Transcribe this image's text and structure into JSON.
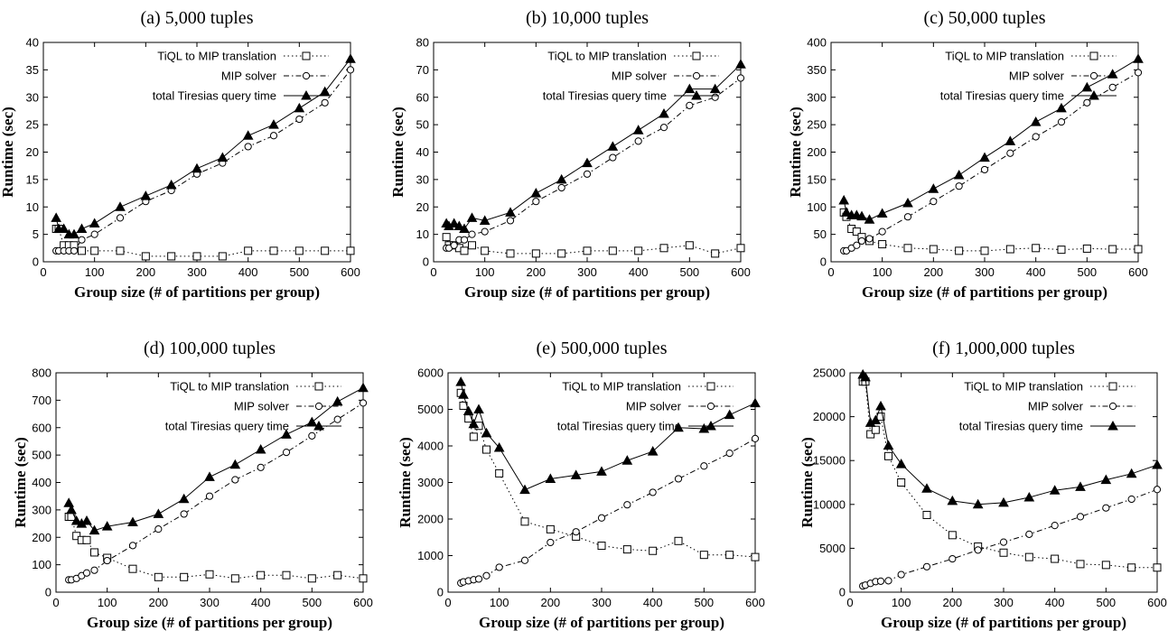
{
  "chart_data": [
    {
      "type": "line",
      "title": "(a) 5,000 tuples",
      "xlabel": "Group size (# of partitions per group)",
      "ylabel": "Runtime (sec)",
      "xlim": [
        0,
        600
      ],
      "ylim": [
        0,
        40
      ],
      "xticks": [
        0,
        100,
        200,
        300,
        400,
        500,
        600
      ],
      "yticks": [
        0,
        5,
        10,
        15,
        20,
        25,
        30,
        35,
        40
      ],
      "legend_position": "top-left",
      "series": [
        {
          "name": "TiQL to MIP translation",
          "marker": "square",
          "dash": "dotted",
          "x": [
            25,
            30,
            40,
            50,
            60,
            75,
            100,
            150,
            200,
            250,
            300,
            350,
            400,
            450,
            500,
            550,
            600
          ],
          "y": [
            6,
            6,
            3,
            3,
            3,
            2,
            2,
            2,
            1,
            1,
            1,
            1,
            2,
            2,
            2,
            2,
            2
          ]
        },
        {
          "name": "MIP solver",
          "marker": "circle",
          "dash": "dash-dot",
          "x": [
            25,
            30,
            40,
            50,
            60,
            75,
            100,
            150,
            200,
            250,
            300,
            350,
            400,
            450,
            500,
            550,
            600
          ],
          "y": [
            2,
            2,
            2,
            2,
            2,
            4,
            5,
            8,
            11,
            13,
            16,
            18,
            21,
            23,
            26,
            29,
            35
          ]
        },
        {
          "name": "total Tiresias query time",
          "marker": "triangle",
          "dash": "solid",
          "x": [
            25,
            30,
            40,
            50,
            60,
            75,
            100,
            150,
            200,
            250,
            300,
            350,
            400,
            450,
            500,
            550,
            600
          ],
          "y": [
            8,
            6,
            6,
            5,
            5,
            6,
            7,
            10,
            12,
            14,
            17,
            19,
            23,
            25,
            28,
            31,
            37
          ]
        }
      ]
    },
    {
      "type": "line",
      "title": "(b) 10,000 tuples",
      "xlabel": "Group size (# of partitions per group)",
      "ylabel": "Runtime (sec)",
      "xlim": [
        0,
        600
      ],
      "ylim": [
        0,
        80
      ],
      "xticks": [
        0,
        100,
        200,
        300,
        400,
        500,
        600
      ],
      "yticks": [
        0,
        10,
        20,
        30,
        40,
        50,
        60,
        70,
        80
      ],
      "legend_position": "top-left",
      "series": [
        {
          "name": "TiQL to MIP translation",
          "marker": "square",
          "dash": "dotted",
          "x": [
            25,
            30,
            40,
            50,
            60,
            75,
            100,
            150,
            200,
            250,
            300,
            350,
            400,
            450,
            500,
            550,
            600
          ],
          "y": [
            9,
            6,
            6,
            5,
            4,
            6,
            4,
            3,
            3,
            3,
            4,
            4,
            4,
            5,
            6,
            3,
            5
          ]
        },
        {
          "name": "MIP solver",
          "marker": "circle",
          "dash": "dash-dot",
          "x": [
            25,
            30,
            40,
            50,
            60,
            75,
            100,
            150,
            200,
            250,
            300,
            350,
            400,
            450,
            500,
            550,
            600
          ],
          "y": [
            5,
            5,
            6,
            8,
            8,
            10,
            11,
            15,
            22,
            27,
            32,
            38,
            44,
            49,
            57,
            60,
            67
          ]
        },
        {
          "name": "total Tiresias query time",
          "marker": "triangle",
          "dash": "solid",
          "x": [
            25,
            30,
            40,
            50,
            60,
            75,
            100,
            150,
            200,
            250,
            300,
            350,
            400,
            450,
            500,
            550,
            600
          ],
          "y": [
            14,
            13,
            14,
            13,
            12,
            16,
            15,
            18,
            25,
            30,
            36,
            42,
            48,
            54,
            63,
            63,
            72
          ]
        }
      ]
    },
    {
      "type": "line",
      "title": "(c) 50,000 tuples",
      "xlabel": "Group size (# of partitions per group)",
      "ylabel": "Runtime (sec)",
      "xlim": [
        0,
        600
      ],
      "ylim": [
        0,
        400
      ],
      "xticks": [
        0,
        100,
        200,
        300,
        400,
        500,
        600
      ],
      "yticks": [
        0,
        50,
        100,
        150,
        200,
        250,
        300,
        350,
        400
      ],
      "legend_position": "top-left",
      "series": [
        {
          "name": "TiQL to MIP translation",
          "marker": "square",
          "dash": "dotted",
          "x": [
            25,
            30,
            40,
            50,
            60,
            75,
            100,
            150,
            200,
            250,
            300,
            350,
            400,
            450,
            500,
            550,
            600
          ],
          "y": [
            90,
            82,
            60,
            55,
            45,
            38,
            32,
            25,
            23,
            20,
            20,
            23,
            25,
            22,
            24,
            23,
            23
          ]
        },
        {
          "name": "MIP solver",
          "marker": "circle",
          "dash": "dash-dot",
          "x": [
            25,
            30,
            40,
            50,
            60,
            75,
            100,
            150,
            200,
            250,
            300,
            350,
            400,
            450,
            500,
            550,
            600
          ],
          "y": [
            20,
            20,
            25,
            30,
            38,
            42,
            55,
            82,
            110,
            138,
            168,
            198,
            228,
            255,
            290,
            318,
            345
          ]
        },
        {
          "name": "total Tiresias query time",
          "marker": "triangle",
          "dash": "solid",
          "x": [
            25,
            30,
            40,
            50,
            60,
            75,
            100,
            150,
            200,
            250,
            300,
            350,
            400,
            450,
            500,
            550,
            600
          ],
          "y": [
            112,
            90,
            85,
            85,
            83,
            77,
            88,
            107,
            133,
            158,
            190,
            220,
            255,
            280,
            318,
            342,
            370
          ]
        }
      ]
    },
    {
      "type": "line",
      "title": "(d) 100,000 tuples",
      "xlabel": "Group size (# of partitions per group)",
      "ylabel": "Runtime (sec)",
      "xlim": [
        0,
        600
      ],
      "ylim": [
        0,
        800
      ],
      "xticks": [
        0,
        100,
        200,
        300,
        400,
        500,
        600
      ],
      "yticks": [
        0,
        100,
        200,
        300,
        400,
        500,
        600,
        700,
        800
      ],
      "legend_position": "top-left",
      "series": [
        {
          "name": "TiQL to MIP translation",
          "marker": "square",
          "dash": "dotted",
          "x": [
            25,
            30,
            40,
            50,
            60,
            75,
            100,
            150,
            200,
            250,
            300,
            350,
            400,
            450,
            500,
            550,
            600
          ],
          "y": [
            275,
            275,
            205,
            190,
            190,
            145,
            125,
            85,
            55,
            55,
            65,
            50,
            62,
            62,
            50,
            62,
            50
          ]
        },
        {
          "name": "MIP solver",
          "marker": "circle",
          "dash": "dash-dot",
          "x": [
            25,
            30,
            40,
            50,
            60,
            75,
            100,
            150,
            200,
            250,
            300,
            350,
            400,
            450,
            500,
            550,
            600
          ],
          "y": [
            45,
            45,
            50,
            60,
            70,
            80,
            115,
            170,
            230,
            285,
            350,
            410,
            455,
            510,
            570,
            630,
            690
          ]
        },
        {
          "name": "total Tiresias query time",
          "marker": "triangle",
          "dash": "solid",
          "x": [
            25,
            30,
            40,
            50,
            60,
            75,
            100,
            150,
            200,
            250,
            300,
            350,
            400,
            450,
            500,
            550,
            600
          ],
          "y": [
            325,
            300,
            260,
            250,
            260,
            225,
            240,
            255,
            285,
            340,
            420,
            465,
            520,
            575,
            620,
            695,
            745
          ]
        }
      ]
    },
    {
      "type": "line",
      "title": "(e) 500,000 tuples",
      "xlabel": "Group size (# of partitions per group)",
      "ylabel": "Runtime (sec)",
      "xlim": [
        0,
        600
      ],
      "ylim": [
        0,
        6000
      ],
      "xticks": [
        0,
        100,
        200,
        300,
        400,
        500,
        600
      ],
      "yticks": [
        0,
        1000,
        2000,
        3000,
        4000,
        5000,
        6000
      ],
      "legend_position": "top-left",
      "series": [
        {
          "name": "TiQL to MIP translation",
          "marker": "square",
          "dash": "dotted",
          "x": [
            25,
            30,
            40,
            50,
            60,
            75,
            100,
            150,
            200,
            250,
            300,
            350,
            400,
            450,
            500,
            550,
            600
          ],
          "y": [
            5450,
            5100,
            4750,
            4250,
            4550,
            3900,
            3250,
            1930,
            1720,
            1520,
            1270,
            1170,
            1130,
            1400,
            1020,
            1020,
            960
          ]
        },
        {
          "name": "MIP solver",
          "marker": "circle",
          "dash": "dash-dot",
          "x": [
            25,
            30,
            40,
            50,
            60,
            75,
            100,
            150,
            200,
            250,
            300,
            350,
            400,
            450,
            500,
            550,
            600
          ],
          "y": [
            250,
            280,
            310,
            340,
            360,
            450,
            680,
            870,
            1360,
            1650,
            2030,
            2390,
            2730,
            3100,
            3450,
            3800,
            4200
          ]
        },
        {
          "name": "total Tiresias query time",
          "marker": "triangle",
          "dash": "solid",
          "x": [
            25,
            30,
            40,
            50,
            60,
            75,
            100,
            150,
            200,
            250,
            300,
            350,
            400,
            450,
            500,
            550,
            600
          ],
          "y": [
            5750,
            5400,
            4950,
            4600,
            5000,
            4350,
            3950,
            2800,
            3100,
            3200,
            3300,
            3600,
            3850,
            4500,
            4470,
            4850,
            5170
          ]
        }
      ]
    },
    {
      "type": "line",
      "title": "(f) 1,000,000 tuples",
      "xlabel": "Group size (# of partitions per group)",
      "ylabel": "Runtime (sec)",
      "xlim": [
        0,
        600
      ],
      "ylim": [
        0,
        25000
      ],
      "xticks": [
        0,
        100,
        200,
        300,
        400,
        500,
        600
      ],
      "yticks": [
        0,
        5000,
        10000,
        15000,
        20000,
        25000
      ],
      "legend_position": "top-left",
      "series": [
        {
          "name": "TiQL to MIP translation",
          "marker": "square",
          "dash": "dotted",
          "x": [
            25,
            30,
            40,
            50,
            60,
            75,
            100,
            150,
            200,
            250,
            300,
            350,
            400,
            450,
            500,
            550,
            600
          ],
          "y": [
            24000,
            24000,
            18000,
            18500,
            20000,
            15500,
            12500,
            8800,
            6500,
            5200,
            4500,
            4000,
            3800,
            3200,
            3100,
            2800,
            2800
          ]
        },
        {
          "name": "MIP solver",
          "marker": "circle",
          "dash": "dash-dot",
          "x": [
            25,
            30,
            40,
            50,
            60,
            75,
            100,
            150,
            200,
            250,
            300,
            350,
            400,
            450,
            500,
            550,
            600
          ],
          "y": [
            700,
            800,
            1000,
            1200,
            1250,
            1300,
            2000,
            2900,
            3800,
            4800,
            5700,
            6600,
            7600,
            8600,
            9600,
            10600,
            11700
          ]
        },
        {
          "name": "total Tiresias query time",
          "marker": "triangle",
          "dash": "solid",
          "x": [
            25,
            30,
            40,
            50,
            60,
            75,
            100,
            150,
            200,
            250,
            300,
            350,
            400,
            450,
            500,
            550,
            600
          ],
          "y": [
            24800,
            24500,
            19300,
            19600,
            21200,
            16700,
            14600,
            11800,
            10400,
            10000,
            10200,
            10800,
            11600,
            12000,
            12800,
            13500,
            14500
          ]
        }
      ]
    }
  ]
}
